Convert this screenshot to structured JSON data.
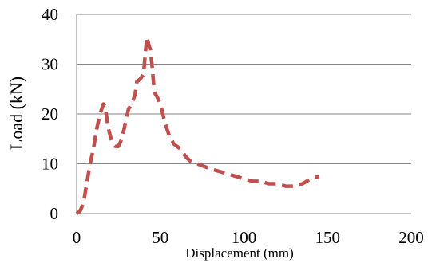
{
  "chart_data": {
    "type": "line",
    "xlabel": "Displacement (mm)",
    "ylabel": "Load (kN)",
    "xlim": [
      0,
      200
    ],
    "ylim": [
      0,
      40
    ],
    "x_ticks": [
      "0",
      "50",
      "100",
      "150",
      "200"
    ],
    "y_ticks": [
      "0",
      "10",
      "20",
      "30",
      "40"
    ],
    "grid": "horizontal",
    "legend": "none",
    "series": [
      {
        "color": "#C0504D",
        "style": "dashed",
        "x": [
          0,
          2,
          4,
          6,
          8,
          10,
          12,
          14,
          16,
          17,
          19,
          21,
          23,
          25,
          27,
          29,
          31,
          33,
          35,
          36,
          38,
          40,
          41,
          42,
          43,
          44,
          45,
          46,
          47,
          48,
          50,
          53,
          55,
          58,
          62,
          65,
          68,
          72,
          76,
          80,
          85,
          90,
          95,
          100,
          105,
          110,
          115,
          120,
          125,
          130,
          135,
          140,
          145
        ],
        "y": [
          0,
          0.5,
          2,
          6,
          10,
          13,
          17,
          20,
          22,
          21.5,
          17,
          14.5,
          13.5,
          13.5,
          15,
          18,
          21,
          22,
          24,
          26.5,
          27,
          28,
          32,
          35.5,
          34,
          33,
          30,
          26,
          24,
          23.5,
          22,
          18,
          16,
          14,
          13,
          11.5,
          10.5,
          10,
          9.5,
          9,
          8.5,
          8,
          7.5,
          7,
          6.5,
          6.5,
          6,
          6,
          5.5,
          5.5,
          6,
          7,
          7.5
        ]
      }
    ]
  }
}
